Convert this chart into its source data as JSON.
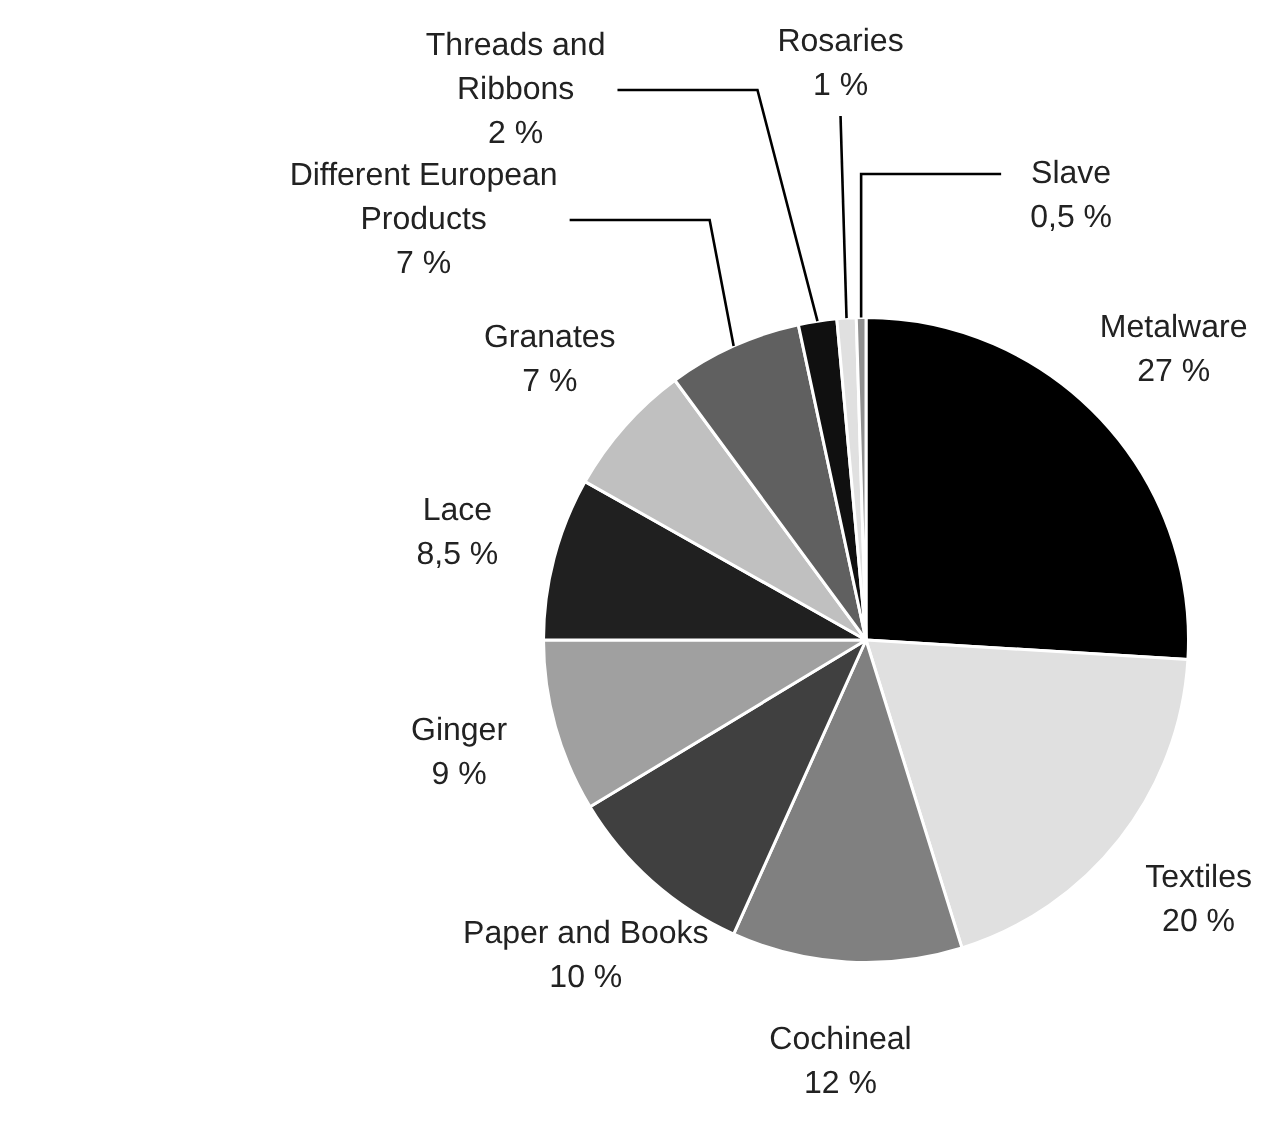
{
  "chart_data": {
    "type": "pie",
    "categories": [
      "Metalware",
      "Textiles",
      "Cochineal",
      "Paper and Books",
      "Ginger",
      "Lace",
      "Granates",
      "Different European Products",
      "Threads and Ribbons",
      "Rosaries",
      "Slave"
    ],
    "values": [
      27,
      20,
      12,
      10,
      9,
      8.5,
      7,
      7,
      2,
      1,
      0.5
    ],
    "value_labels": [
      "27 %",
      "20 %",
      "12 %",
      "10 %",
      "9 %",
      "8,5 %",
      "7 %",
      "7 %",
      "2 %",
      "1 %",
      "0,5 %"
    ],
    "colors": [
      "#000000",
      "#e0e0e0",
      "#808080",
      "#404040",
      "#a0a0a0",
      "#202020",
      "#c0c0c0",
      "#606060",
      "#101010",
      "#e0e0e0",
      "#909090"
    ],
    "legend": false
  }
}
